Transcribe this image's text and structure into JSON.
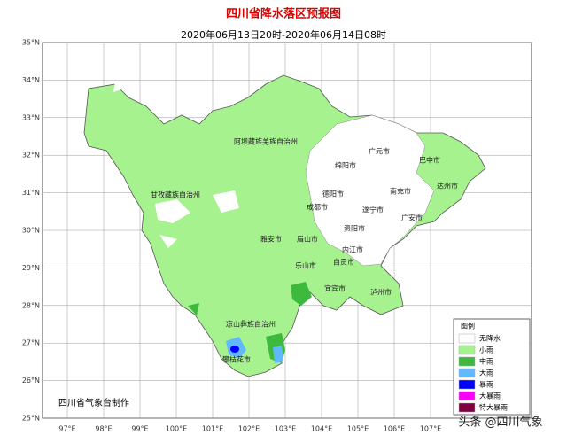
{
  "header": {
    "title": "四川省降水落区预报图",
    "subtitle": "2020年06月13日20时-2020年06月14日08时"
  },
  "map": {
    "lat_ticks": [
      {
        "value": 25,
        "label": "25°N"
      },
      {
        "value": 26,
        "label": "26°N"
      },
      {
        "value": 27,
        "label": "27°N"
      },
      {
        "value": 28,
        "label": "28°N"
      },
      {
        "value": 29,
        "label": "29°N"
      },
      {
        "value": 30,
        "label": "30°N"
      },
      {
        "value": 31,
        "label": "31°N"
      },
      {
        "value": 32,
        "label": "32°N"
      },
      {
        "value": 33,
        "label": "33°N"
      },
      {
        "value": 34,
        "label": "34°N"
      },
      {
        "value": 35,
        "label": "35°N"
      }
    ],
    "lon_ticks": [
      {
        "value": 97,
        "label": "97°E"
      },
      {
        "value": 98,
        "label": "98°E"
      },
      {
        "value": 99,
        "label": "99°E"
      },
      {
        "value": 100,
        "label": "100°E"
      },
      {
        "value": 101,
        "label": "101°E"
      },
      {
        "value": 102,
        "label": "102°E"
      },
      {
        "value": 103,
        "label": "103°E"
      },
      {
        "value": 104,
        "label": "104°E"
      },
      {
        "value": 105,
        "label": "105°E"
      },
      {
        "value": 106,
        "label": "106°E"
      },
      {
        "value": 107,
        "label": "107°E"
      }
    ],
    "places": [
      "阿坝藏族羌族自治州",
      "甘孜藏族自治州",
      "绵阳市",
      "广元市",
      "巴中市",
      "达州市",
      "南充市",
      "德阳市",
      "成都市",
      "遂宁市",
      "广安市",
      "资阳市",
      "雅安市",
      "眉山市",
      "内江市",
      "乐山市",
      "自贡市",
      "宜宾市",
      "泸州市",
      "凉山彝族自治州",
      "攀枝花市"
    ],
    "credit": "四川省气象台制作"
  },
  "legend": {
    "title": "图例",
    "items": [
      {
        "label": "无降水",
        "color": "#ffffff"
      },
      {
        "label": "小雨",
        "color": "#a6f28f"
      },
      {
        "label": "中雨",
        "color": "#3dba3d"
      },
      {
        "label": "大雨",
        "color": "#61b8ff"
      },
      {
        "label": "暴雨",
        "color": "#0000fe"
      },
      {
        "label": "大暴雨",
        "color": "#fa00fa"
      },
      {
        "label": "特大暴雨",
        "color": "#800040"
      }
    ]
  },
  "watermark": "头条 @四川气象"
}
